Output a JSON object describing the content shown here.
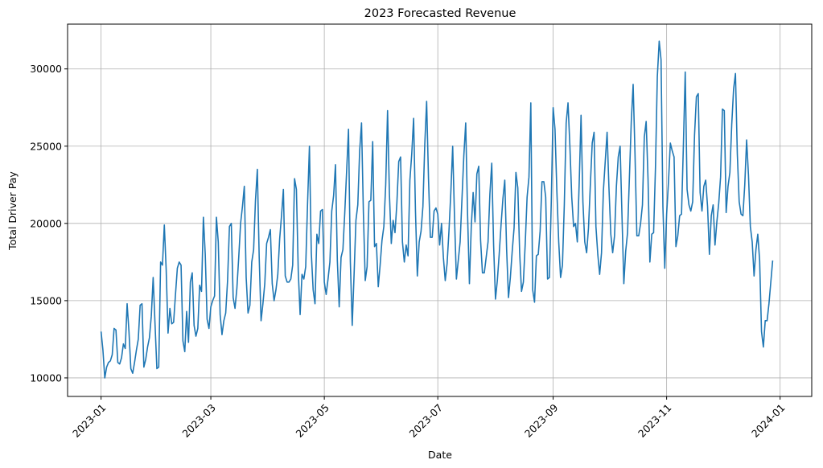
{
  "chart_data": {
    "type": "line",
    "title": "2023 Forecasted Revenue",
    "xlabel": "Date",
    "ylabel": "Total Driver Pay",
    "xlim": [
      "2022-12-14",
      "2024-01-18"
    ],
    "ylim": [
      8800,
      32900
    ],
    "grid": true,
    "line_color": "#1f77b4",
    "x_ticks": [
      "2023-01",
      "2023-03",
      "2023-05",
      "2023-07",
      "2023-09",
      "2023-11",
      "2024-01"
    ],
    "y_ticks": [
      10000,
      15000,
      20000,
      25000,
      30000
    ],
    "series": [
      {
        "start": "2023-01-01",
        "step_days": 1,
        "values": [
          13000,
          11800,
          10000,
          10700,
          11000,
          11100,
          11500,
          13200,
          13100,
          11000,
          10900,
          11300,
          12200,
          11900,
          14800,
          13000,
          10600,
          10300,
          11000,
          11800,
          12500,
          14700,
          14800,
          10700,
          11200,
          12000,
          12600,
          14000,
          16500,
          13500,
          10600,
          10700,
          17500,
          17300,
          19900,
          17000,
          12900,
          14500,
          13500,
          13600,
          15400,
          17100,
          17500,
          17300,
          12400,
          11700,
          14300,
          12300,
          16200,
          16800,
          13400,
          12700,
          13200,
          16000,
          15600,
          20400,
          18000,
          13800,
          13200,
          14600,
          15000,
          15300,
          20400,
          18800,
          14100,
          12800,
          13700,
          14200,
          16300,
          19800,
          20000,
          15200,
          14500,
          15800,
          17800,
          20000,
          21100,
          22400,
          16500,
          14200,
          14700,
          17500,
          18300,
          21500,
          23500,
          17800,
          13700,
          14800,
          16100,
          18700,
          19100,
          19600,
          16100,
          15000,
          15700,
          16700,
          19000,
          20500,
          22200,
          16600,
          16200,
          16200,
          16400,
          17300,
          22900,
          22200,
          16900,
          14100,
          16700,
          16400,
          17200,
          21300,
          25000,
          18100,
          15700,
          14800,
          19300,
          18700,
          20800,
          20900,
          16200,
          15400,
          16400,
          17500,
          20800,
          21800,
          23800,
          17600,
          14600,
          17800,
          18300,
          20700,
          23400,
          26100,
          17500,
          13400,
          16700,
          20200,
          21200,
          24700,
          26500,
          20700,
          16300,
          17200,
          21400,
          21500,
          25300,
          18500,
          18700,
          15900,
          17300,
          18900,
          19800,
          22500,
          27300,
          21900,
          18700,
          20200,
          19400,
          21300,
          24000,
          24300,
          18800,
          17500,
          18600,
          17900,
          22800,
          24500,
          26800,
          20800,
          16600,
          18800,
          19500,
          21100,
          25100,
          27900,
          22900,
          19100,
          19100,
          20800,
          21000,
          20600,
          18600,
          20000,
          17800,
          16300,
          17400,
          19500,
          22000,
          25000,
          20300,
          16400,
          17600,
          18800,
          21600,
          24400,
          26500,
          20600,
          16100,
          19800,
          22000,
          20100,
          23200,
          23700,
          18900,
          16800,
          16800,
          17800,
          18800,
          21900,
          23900,
          18600,
          15100,
          16300,
          18000,
          19900,
          21600,
          22800,
          18300,
          15200,
          16500,
          18200,
          19700,
          23300,
          22300,
          18100,
          15600,
          16200,
          18700,
          21700,
          23000,
          27800,
          15700,
          14900,
          17900,
          18000,
          19500,
          22700,
          22700,
          21700,
          16400,
          16500,
          21400,
          27500,
          26100,
          22100,
          18800,
          16500,
          17300,
          21200,
          26500,
          27800,
          25000,
          21700,
          19800,
          20000,
          18800,
          22600,
          27000,
          21400,
          18800,
          18100,
          19700,
          22500,
          25200,
          25900,
          19800,
          18000,
          16700,
          18100,
          22100,
          24000,
          25900,
          22300,
          19300,
          18100,
          19200,
          22400,
          24300,
          25000,
          20500,
          16100,
          18200,
          19400,
          23000,
          26600,
          29000,
          24500,
          19200,
          19200,
          20000,
          21200,
          25600,
          26600,
          22900,
          17500,
          19300,
          19400,
          23600,
          29500,
          31800,
          30600,
          21100,
          17100,
          20600,
          22700,
          25200,
          24700,
          24300,
          18500,
          19200,
          20500,
          20600,
          25000,
          29800,
          22200,
          21200,
          20800,
          21400,
          25700,
          28200,
          28400,
          22000,
          20800,
          22400,
          22800,
          21100,
          18000,
          20500,
          21200,
          18600,
          20100,
          21300,
          23000,
          27400,
          27300,
          20700,
          22400,
          23300,
          26400,
          28700,
          29700,
          24500,
          21400,
          20600,
          20500,
          22500,
          25400,
          23100,
          19800,
          18800,
          16600,
          18300,
          19300,
          17600,
          13000,
          12000,
          13700,
          13700,
          14800,
          16200,
          17600
        ]
      }
    ]
  }
}
